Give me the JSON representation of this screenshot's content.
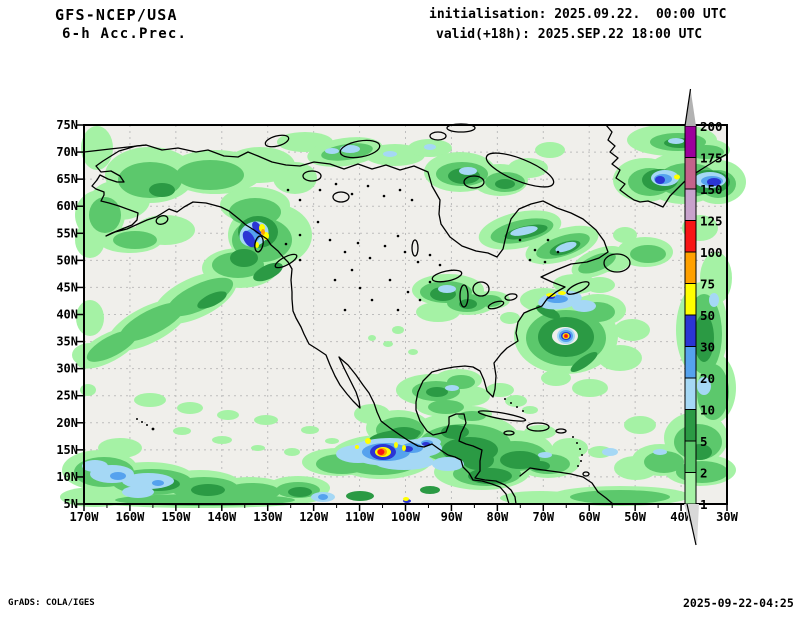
{
  "header": {
    "model": "GFS-NCEP/USA",
    "product": "6-h Acc.Prec.",
    "init_line": "initialisation: 2025.09.22.  00:00 UTC",
    "valid_line": "valid(+18h): 2025.SEP.22 18:00 UTC"
  },
  "footer": {
    "credit": "GrADS: COLA/IGES",
    "timestamp": "2025-09-22-04:25"
  },
  "map": {
    "lat_labels": [
      "75N",
      "70N",
      "65N",
      "60N",
      "55N",
      "50N",
      "45N",
      "40N",
      "35N",
      "30N",
      "25N",
      "20N",
      "15N",
      "10N",
      "5N"
    ],
    "lon_labels": [
      "170W",
      "160W",
      "150W",
      "140W",
      "130W",
      "120W",
      "110W",
      "100W",
      "90W",
      "80W",
      "70W",
      "60W",
      "50W",
      "40W",
      "30W"
    ]
  },
  "colorbar": {
    "labels": [
      "200",
      "175",
      "150",
      "125",
      "100",
      "75",
      "50",
      "30",
      "20",
      "10",
      "5",
      "2",
      "1"
    ],
    "colors": [
      "purple",
      "rose",
      "lilac",
      "red",
      "orange",
      "yellow",
      "dark_blue",
      "med_blue",
      "light_blue",
      "dark_green",
      "green",
      "light_green"
    ]
  },
  "palette": {
    "purple": "#9b009b",
    "rose": "#c4638b",
    "lilac": "#c8a2cc",
    "red": "#f81515",
    "orange": "#ffa000",
    "yellow": "#ffff00",
    "dark_blue": "#2b35d4",
    "med_blue": "#55a2ee",
    "light_blue": "#a5d8f5",
    "dark_green": "#2b9a44",
    "green": "#5cc86c",
    "light_green": "#a5f2a5",
    "map_bg": "#f0efeb",
    "grid": "#bdbdbd",
    "coast": "#000000",
    "arrow_top": "#b2b2b2",
    "arrow_bottom": "#d8d8d8"
  }
}
